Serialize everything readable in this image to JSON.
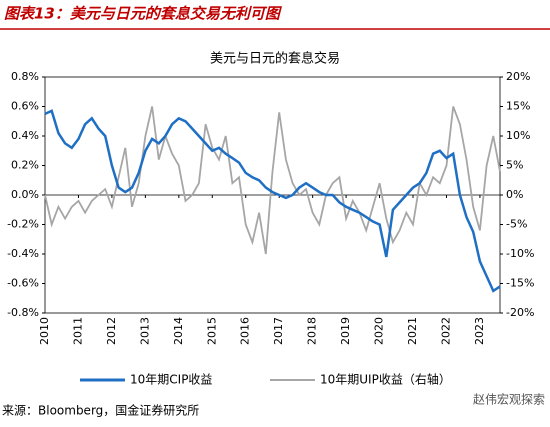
{
  "header": {
    "title": "图表13：美元与日元的套息交易无利可图"
  },
  "chart_data": {
    "type": "line",
    "title": "美元与日元的套息交易",
    "x": [
      2010.0,
      2010.2,
      2010.4,
      2010.6,
      2010.8,
      2011.0,
      2011.2,
      2011.4,
      2011.6,
      2011.8,
      2012.0,
      2012.2,
      2012.4,
      2012.6,
      2012.8,
      2013.0,
      2013.2,
      2013.4,
      2013.6,
      2013.8,
      2014.0,
      2014.2,
      2014.4,
      2014.6,
      2014.8,
      2015.0,
      2015.2,
      2015.4,
      2015.6,
      2015.8,
      2016.0,
      2016.2,
      2016.4,
      2016.6,
      2016.8,
      2017.0,
      2017.2,
      2017.4,
      2017.6,
      2017.8,
      2018.0,
      2018.2,
      2018.4,
      2018.6,
      2018.8,
      2019.0,
      2019.2,
      2019.4,
      2019.6,
      2019.8,
      2020.0,
      2020.2,
      2020.4,
      2020.6,
      2020.8,
      2021.0,
      2021.2,
      2021.4,
      2021.6,
      2021.8,
      2022.0,
      2022.2,
      2022.4,
      2022.6,
      2022.8,
      2023.0,
      2023.2,
      2023.4,
      2023.6
    ],
    "series": [
      {
        "name": "10年期CIP收益",
        "color": "#1f6fc5",
        "axis": "y",
        "values": [
          0.55,
          0.57,
          0.42,
          0.35,
          0.32,
          0.38,
          0.48,
          0.52,
          0.45,
          0.4,
          0.2,
          0.05,
          0.02,
          0.05,
          0.15,
          0.3,
          0.38,
          0.35,
          0.4,
          0.48,
          0.52,
          0.5,
          0.45,
          0.4,
          0.35,
          0.3,
          0.32,
          0.28,
          0.25,
          0.22,
          0.15,
          0.12,
          0.1,
          0.05,
          0.02,
          0.0,
          -0.02,
          0.0,
          0.05,
          0.08,
          0.05,
          0.02,
          0.0,
          0.0,
          -0.05,
          -0.08,
          -0.1,
          -0.12,
          -0.15,
          -0.18,
          -0.2,
          -0.42,
          -0.1,
          -0.05,
          0.0,
          0.05,
          0.08,
          0.15,
          0.28,
          0.3,
          0.25,
          0.28,
          0.0,
          -0.15,
          -0.25,
          -0.45,
          -0.55,
          -0.65,
          -0.62
        ]
      },
      {
        "name": "10年期UIP收益（右轴）",
        "color": "#a6a6a6",
        "axis": "y2",
        "values": [
          0,
          -5,
          -2,
          -4,
          -2,
          -1,
          -3,
          -1,
          0,
          1,
          -2,
          3,
          8,
          -2,
          2,
          10,
          15,
          6,
          10,
          7,
          5,
          -1,
          0,
          2,
          12,
          8,
          6,
          10,
          2,
          3,
          -5,
          -8,
          -3,
          -10,
          4,
          14,
          6,
          2,
          0,
          1,
          -3,
          -5,
          0,
          2,
          3,
          -4,
          -1,
          -3,
          -6,
          -2,
          2,
          -4,
          -8,
          -6,
          -3,
          -5,
          2,
          0,
          3,
          2,
          5,
          15,
          12,
          6,
          -2,
          -6,
          5,
          10,
          4
        ]
      }
    ],
    "xlim": [
      2010,
      2023.6
    ],
    "xticks": [
      2010,
      2011,
      2012,
      2013,
      2014,
      2015,
      2016,
      2017,
      2018,
      2019,
      2020,
      2021,
      2022,
      2023
    ],
    "ylim": [
      -0.8,
      0.8
    ],
    "yticks": [
      {
        "value": -0.8,
        "label": "-0.8%"
      },
      {
        "value": -0.6,
        "label": "-0.6%"
      },
      {
        "value": -0.4,
        "label": "-0.4%"
      },
      {
        "value": -0.2,
        "label": "-0.2%"
      },
      {
        "value": 0,
        "label": "0.0%"
      },
      {
        "value": 0.2,
        "label": "0.2%"
      },
      {
        "value": 0.4,
        "label": "0.4%"
      },
      {
        "value": 0.6,
        "label": "0.6%"
      },
      {
        "value": 0.8,
        "label": "0.8%"
      }
    ],
    "y2lim": [
      -20,
      20
    ],
    "y2ticks": [
      {
        "value": -20,
        "label": "-20%"
      },
      {
        "value": -15,
        "label": "-15%"
      },
      {
        "value": -10,
        "label": "-10%"
      },
      {
        "value": -5,
        "label": "-5%"
      },
      {
        "value": 0,
        "label": "0%"
      },
      {
        "value": 5,
        "label": "5%"
      },
      {
        "value": 10,
        "label": "10%"
      },
      {
        "value": 15,
        "label": "15%"
      },
      {
        "value": 20,
        "label": "20%"
      }
    ]
  },
  "footer": {
    "source": "来源：Bloomberg，国金证券研究所",
    "watermark": "赵伟宏观探索"
  }
}
